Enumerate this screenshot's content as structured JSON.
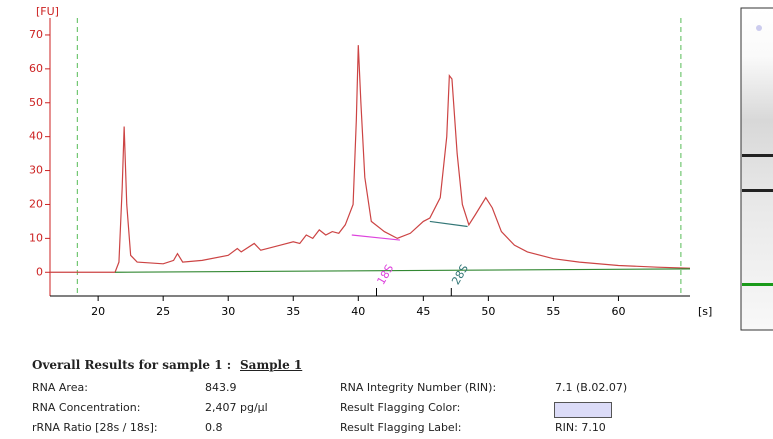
{
  "chart_data": {
    "type": "line",
    "y_unit_label": "[FU]",
    "x_unit_label": "[s]",
    "xlim": [
      16.3,
      65.5
    ],
    "ylim": [
      -7,
      75
    ],
    "xticks": [
      20,
      25,
      30,
      35,
      40,
      45,
      50,
      55,
      60
    ],
    "yticks": [
      0,
      10,
      20,
      30,
      40,
      50,
      60,
      70
    ],
    "markers": [
      18.4,
      64.8
    ],
    "marker_color": "#55bb55",
    "series": [
      {
        "color": "#cc4444",
        "x": [
          16.3,
          21.3,
          21.6,
          21.85,
          22.0,
          22.2,
          22.5,
          23,
          25,
          25.8,
          26.1,
          26.5,
          28,
          30,
          30.7,
          31,
          32,
          32.5,
          33,
          34,
          35,
          35.5,
          36,
          36.5,
          37,
          37.5,
          38,
          38.5,
          39,
          39.6,
          39.85,
          40.0,
          40.2,
          40.5,
          41,
          42,
          43,
          44,
          45,
          45.5,
          46.3,
          46.8,
          47.0,
          47.2,
          47.6,
          48,
          48.5,
          49,
          49.8,
          50.3,
          51,
          52,
          53,
          55,
          57,
          60,
          63,
          65.5
        ],
        "values": [
          0,
          0,
          3,
          25,
          43,
          20,
          5,
          3,
          2.5,
          3.5,
          5.5,
          3,
          3.5,
          5,
          7,
          6,
          8.5,
          6.5,
          7,
          8,
          9,
          8.5,
          11,
          10,
          12.5,
          11,
          12,
          11.5,
          14,
          20,
          45,
          67,
          50,
          28,
          15,
          12,
          10,
          11.5,
          15,
          16,
          22,
          40,
          58,
          57,
          35,
          20,
          14,
          17,
          22,
          19,
          12,
          8,
          6,
          4,
          3,
          2,
          1.5,
          1.2
        ]
      },
      {
        "color": "#338833",
        "x": [
          21.3,
          65.5
        ],
        "values": [
          0,
          1
        ]
      },
      {
        "color": "#dd44dd",
        "x": [
          39.5,
          43.2
        ],
        "values": [
          11,
          9.5
        ]
      },
      {
        "color": "#337777",
        "x": [
          45.5,
          48.4
        ],
        "values": [
          15,
          13.5
        ]
      }
    ],
    "annotations": [
      {
        "text": "18S",
        "x": 41.4,
        "color": "#dd44dd"
      },
      {
        "text": "28S",
        "x": 47.15,
        "color": "#337777"
      }
    ]
  },
  "results": {
    "title": "Overall Results for sample 1 :",
    "sample": "Sample 1",
    "rows": [
      [
        "RNA Area:",
        "843.9",
        "RNA Integrity Number (RIN):",
        "7.1  (B.02.07)"
      ],
      [
        "RNA Concentration:",
        "2,407 pg/µl",
        "Result Flagging Color:",
        ""
      ],
      [
        "rRNA Ratio [28s / 18s]:",
        "0.8",
        "Result Flagging Label:",
        "RIN: 7.10"
      ]
    ]
  }
}
